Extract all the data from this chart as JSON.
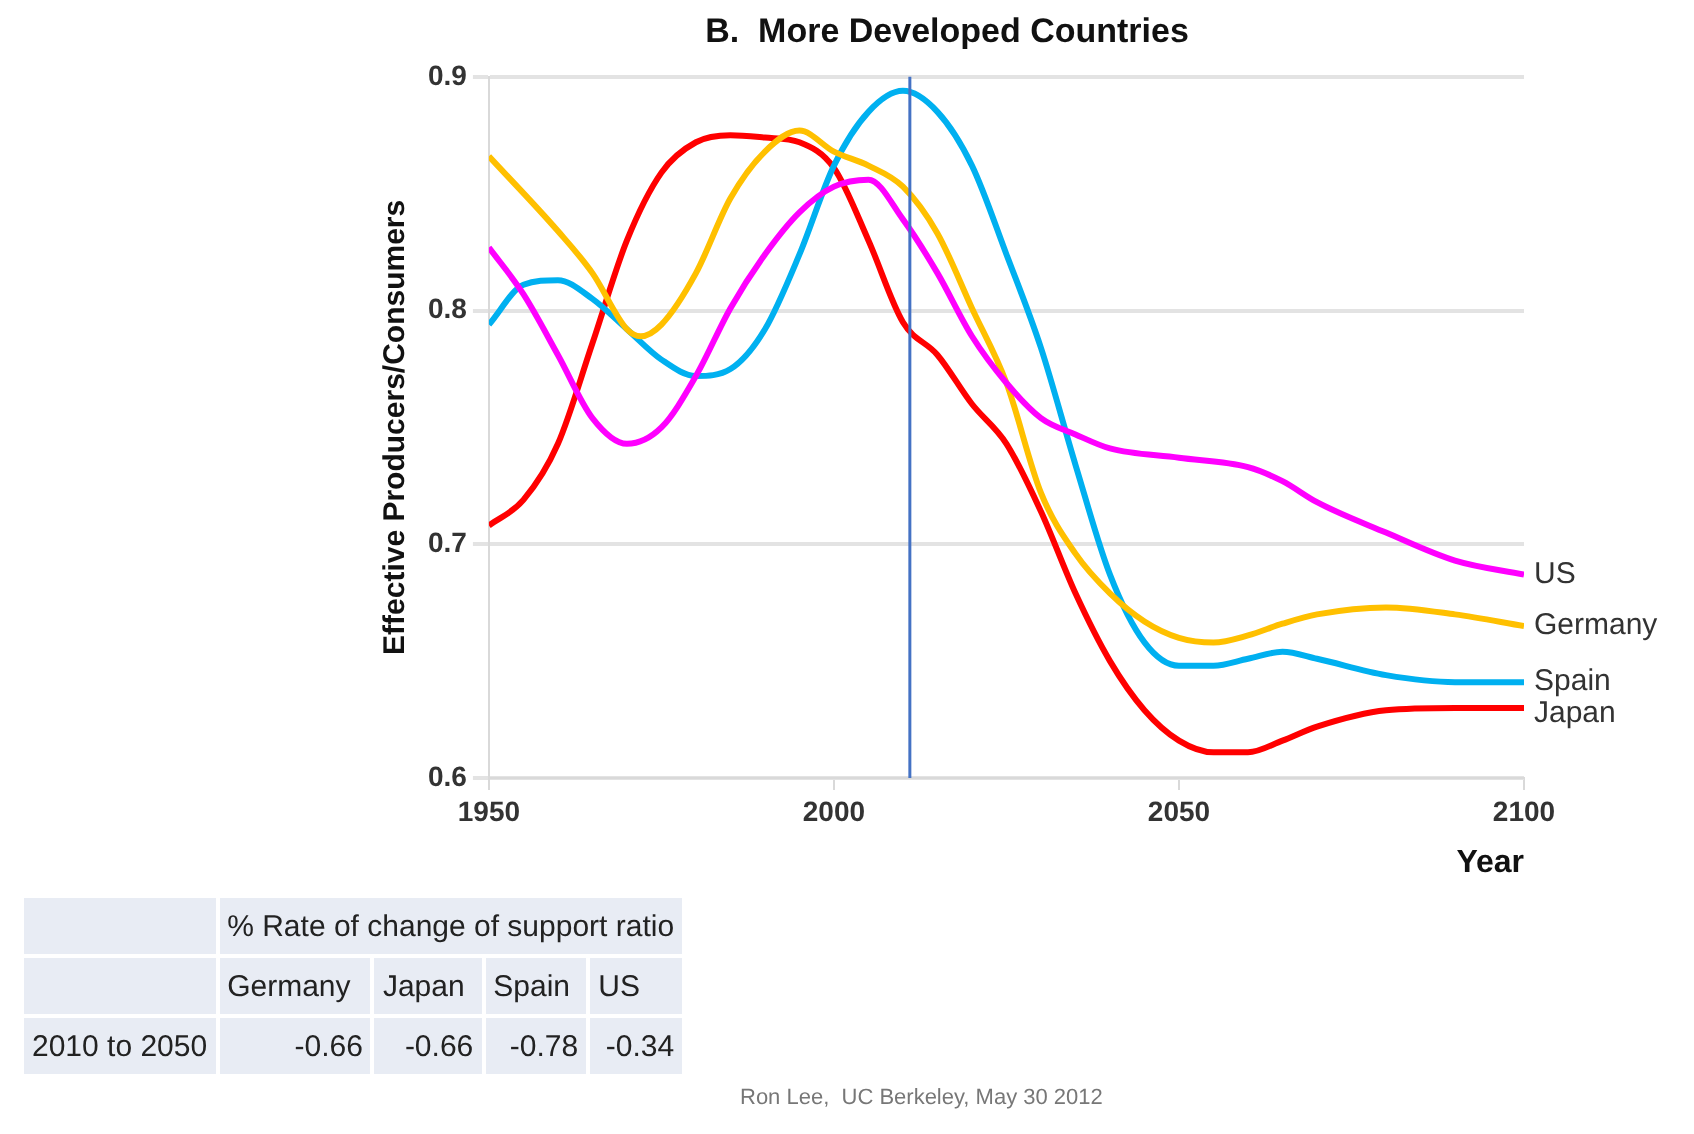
{
  "chart_data": {
    "type": "line",
    "title": "B.  More Developed Countries",
    "xlabel": "Year",
    "ylabel": "Effective Producers/Consumers",
    "xlim": [
      1950,
      2100
    ],
    "xticks": [
      1950,
      2000,
      2050,
      2100
    ],
    "ylim": [
      0.6,
      0.9
    ],
    "yticks": [
      0.6,
      0.7,
      0.8,
      0.9
    ],
    "grid": "y",
    "legend": false,
    "marker": "none",
    "line_style": "solid",
    "series": [
      {
        "name": "US",
        "color": "#ff00ff",
        "x": [
          1950,
          1955,
          1960,
          1965,
          1970,
          1975,
          1980,
          1985,
          1990,
          1995,
          2000,
          2005,
          2010,
          2015,
          2020,
          2025,
          2030,
          2035,
          2040,
          2050,
          2060,
          2065,
          2070,
          2080,
          2090,
          2100
        ],
        "values": [
          0.827,
          0.807,
          0.781,
          0.754,
          0.743,
          0.75,
          0.772,
          0.801,
          0.824,
          0.842,
          0.853,
          0.856,
          0.839,
          0.816,
          0.789,
          0.769,
          0.754,
          0.747,
          0.741,
          0.737,
          0.733,
          0.727,
          0.718,
          0.705,
          0.693,
          0.687
        ]
      },
      {
        "name": "Germany",
        "color": "#ffc000",
        "x": [
          1950,
          1960,
          1965,
          1970,
          1972,
          1975,
          1980,
          1985,
          1990,
          1995,
          2000,
          2005,
          2010,
          2015,
          2020,
          2025,
          2030,
          2035,
          2040,
          2045,
          2050,
          2055,
          2060,
          2065,
          2070,
          2080,
          2090,
          2100
        ],
        "values": [
          0.866,
          0.834,
          0.816,
          0.792,
          0.789,
          0.794,
          0.816,
          0.848,
          0.868,
          0.877,
          0.868,
          0.862,
          0.853,
          0.833,
          0.801,
          0.769,
          0.722,
          0.696,
          0.679,
          0.667,
          0.66,
          0.658,
          0.661,
          0.666,
          0.67,
          0.673,
          0.67,
          0.665
        ]
      },
      {
        "name": "Spain",
        "color": "#00b0f0",
        "x": [
          1950,
          1955,
          1960,
          1965,
          1970,
          1975,
          1980,
          1985,
          1990,
          1995,
          2000,
          2005,
          2010,
          2015,
          2020,
          2025,
          2030,
          2035,
          2040,
          2045,
          2050,
          2055,
          2060,
          2065,
          2070,
          2080,
          2090,
          2100
        ],
        "values": [
          0.794,
          0.811,
          0.813,
          0.805,
          0.792,
          0.779,
          0.772,
          0.775,
          0.792,
          0.824,
          0.862,
          0.885,
          0.894,
          0.885,
          0.862,
          0.824,
          0.784,
          0.734,
          0.687,
          0.658,
          0.648,
          0.648,
          0.651,
          0.654,
          0.651,
          0.644,
          0.641,
          0.641
        ]
      },
      {
        "name": "Japan",
        "color": "#ff0000",
        "x": [
          1950,
          1955,
          1960,
          1965,
          1970,
          1975,
          1980,
          1985,
          1990,
          1995,
          2000,
          2005,
          2010,
          2015,
          2020,
          2025,
          2030,
          2035,
          2040,
          2045,
          2050,
          2055,
          2060,
          2065,
          2070,
          2080,
          2090,
          2100
        ],
        "values": [
          0.708,
          0.719,
          0.743,
          0.786,
          0.83,
          0.859,
          0.872,
          0.875,
          0.874,
          0.872,
          0.861,
          0.83,
          0.795,
          0.781,
          0.76,
          0.743,
          0.714,
          0.679,
          0.65,
          0.629,
          0.616,
          0.611,
          0.611,
          0.616,
          0.622,
          0.629,
          0.63,
          0.63
        ]
      }
    ],
    "ref_lines": [
      {
        "axis": "x",
        "value": 2011,
        "color": "#4472c4"
      }
    ],
    "annotations": [
      "% Rate of change of support ratio",
      "Germany",
      "Japan",
      "Spain",
      "US",
      "2010 to 2050",
      "-0.66",
      "-0.66",
      "-0.78",
      "-0.34",
      "Ron Lee,  UC Berkeley, May 30 2012"
    ]
  }
}
